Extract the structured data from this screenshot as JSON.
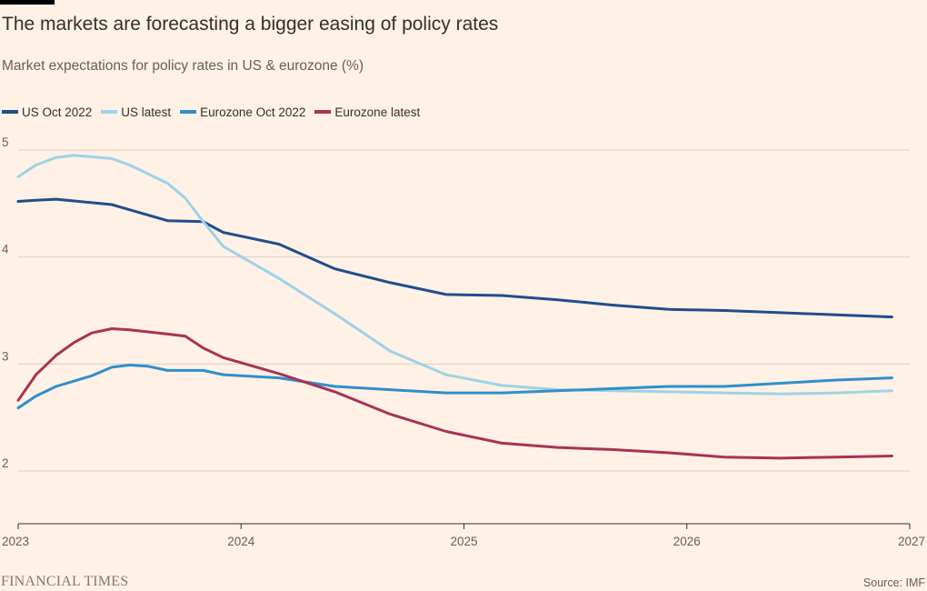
{
  "header": {
    "title": "The markets are forecasting a bigger easing of policy rates",
    "subtitle": "Market expectations for policy rates in US & eurozone (%)"
  },
  "footer": {
    "logo_text": "FINANCIAL TIMES",
    "source": "Source: IMF"
  },
  "colors": {
    "background": "#FFF1E5",
    "grid": "#D9CEC4",
    "axis": "#33302E"
  },
  "chart_data": {
    "type": "line",
    "xlim": [
      2023,
      2027
    ],
    "ylim": [
      1.5,
      5.3
    ],
    "x_ticks": [
      2023,
      2024,
      2025,
      2026,
      2027
    ],
    "x_tick_labels": [
      "2023",
      "2024",
      "2025",
      "2026",
      "2027"
    ],
    "y_ticks": [
      2,
      3,
      4,
      5
    ],
    "y_tick_labels": [
      "2",
      "3",
      "4",
      "5"
    ],
    "grid": "horizontal",
    "legend_position": "top-left",
    "xlabel": "",
    "ylabel": "",
    "series": [
      {
        "name": "US Oct 2022",
        "color": "#1F4E8C",
        "points": [
          [
            2023.0,
            4.52
          ],
          [
            2023.08,
            4.53
          ],
          [
            2023.17,
            4.54
          ],
          [
            2023.42,
            4.49
          ],
          [
            2023.67,
            4.34
          ],
          [
            2023.83,
            4.33
          ],
          [
            2023.92,
            4.23
          ],
          [
            2024.17,
            4.12
          ],
          [
            2024.42,
            3.89
          ],
          [
            2024.67,
            3.76
          ],
          [
            2024.92,
            3.65
          ],
          [
            2025.17,
            3.64
          ],
          [
            2025.42,
            3.6
          ],
          [
            2025.67,
            3.55
          ],
          [
            2025.92,
            3.51
          ],
          [
            2026.17,
            3.5
          ],
          [
            2026.42,
            3.48
          ],
          [
            2026.67,
            3.46
          ],
          [
            2026.92,
            3.44
          ]
        ]
      },
      {
        "name": "US latest",
        "color": "#9DD2E8",
        "points": [
          [
            2023.0,
            4.75
          ],
          [
            2023.08,
            4.86
          ],
          [
            2023.17,
            4.93
          ],
          [
            2023.25,
            4.95
          ],
          [
            2023.42,
            4.92
          ],
          [
            2023.5,
            4.86
          ],
          [
            2023.58,
            4.78
          ],
          [
            2023.67,
            4.69
          ],
          [
            2023.75,
            4.55
          ],
          [
            2023.83,
            4.33
          ],
          [
            2023.92,
            4.1
          ],
          [
            2024.17,
            3.8
          ],
          [
            2024.42,
            3.47
          ],
          [
            2024.67,
            3.12
          ],
          [
            2024.92,
            2.9
          ],
          [
            2025.17,
            2.8
          ],
          [
            2025.42,
            2.76
          ],
          [
            2025.67,
            2.75
          ],
          [
            2025.92,
            2.74
          ],
          [
            2026.17,
            2.73
          ],
          [
            2026.42,
            2.72
          ],
          [
            2026.67,
            2.73
          ],
          [
            2026.92,
            2.75
          ]
        ]
      },
      {
        "name": "Eurozone Oct 2022",
        "color": "#2F8FCB",
        "points": [
          [
            2023.0,
            2.59
          ],
          [
            2023.08,
            2.7
          ],
          [
            2023.17,
            2.79
          ],
          [
            2023.33,
            2.89
          ],
          [
            2023.42,
            2.97
          ],
          [
            2023.5,
            2.99
          ],
          [
            2023.58,
            2.98
          ],
          [
            2023.67,
            2.94
          ],
          [
            2023.83,
            2.94
          ],
          [
            2023.92,
            2.9
          ],
          [
            2024.17,
            2.87
          ],
          [
            2024.42,
            2.79
          ],
          [
            2024.67,
            2.76
          ],
          [
            2024.92,
            2.73
          ],
          [
            2025.17,
            2.73
          ],
          [
            2025.42,
            2.75
          ],
          [
            2025.67,
            2.77
          ],
          [
            2025.92,
            2.79
          ],
          [
            2026.17,
            2.79
          ],
          [
            2026.42,
            2.82
          ],
          [
            2026.67,
            2.85
          ],
          [
            2026.92,
            2.87
          ]
        ]
      },
      {
        "name": "Eurozone latest",
        "color": "#A83256",
        "points": [
          [
            2023.0,
            2.66
          ],
          [
            2023.08,
            2.9
          ],
          [
            2023.17,
            3.08
          ],
          [
            2023.25,
            3.2
          ],
          [
            2023.33,
            3.29
          ],
          [
            2023.42,
            3.33
          ],
          [
            2023.5,
            3.32
          ],
          [
            2023.67,
            3.28
          ],
          [
            2023.75,
            3.26
          ],
          [
            2023.83,
            3.15
          ],
          [
            2023.92,
            3.06
          ],
          [
            2024.17,
            2.91
          ],
          [
            2024.42,
            2.74
          ],
          [
            2024.67,
            2.53
          ],
          [
            2024.92,
            2.37
          ],
          [
            2025.17,
            2.26
          ],
          [
            2025.42,
            2.22
          ],
          [
            2025.67,
            2.2
          ],
          [
            2025.92,
            2.17
          ],
          [
            2026.17,
            2.13
          ],
          [
            2026.42,
            2.12
          ],
          [
            2026.67,
            2.13
          ],
          [
            2026.92,
            2.14
          ]
        ]
      }
    ]
  }
}
